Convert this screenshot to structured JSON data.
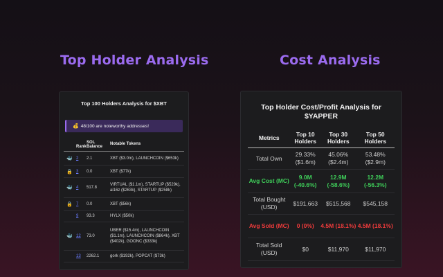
{
  "headings": {
    "left": "Top Holder Analysis",
    "right": "Cost Analysis"
  },
  "holders_card": {
    "title": "Top 100 Holders Analysis for $XBT",
    "notice_icon": "money-bag-icon",
    "notice": "48/100 are noteworthy addresses!",
    "columns": {
      "rank": "Rank",
      "balance": "SOL Balance",
      "tokens": "Notable Tokens"
    },
    "rows": [
      {
        "icon": "whale-icon",
        "rank": "2",
        "balance": "2.1",
        "tokens": "XBT ($3.0m), LAUNCHCOIN ($653k)"
      },
      {
        "icon": "lock-icon",
        "rank": "3",
        "balance": "0.0",
        "tokens": "XBT ($77k)"
      },
      {
        "icon": "whale-icon",
        "rank": "4",
        "balance": "517.8",
        "tokens": "VIRTUAL ($1.1m), STARTUP ($529k), ai16z ($263k), STARTUP ($258k)"
      },
      {
        "icon": "lock-icon",
        "rank": "7",
        "balance": "0.0",
        "tokens": "XBT ($56k)"
      },
      {
        "icon": "",
        "rank": "9",
        "balance": "93.3",
        "tokens": "HYLX ($50k)"
      },
      {
        "icon": "whale-icon",
        "rank": "12",
        "balance": "73.0",
        "tokens": "UBER ($15.4m), LAUNCHCOIN ($1.1m), LAUNCHCOIN ($864k), XBT ($402k), GOONC ($333k)"
      },
      {
        "icon": "",
        "rank": "13",
        "balance": "2262.1",
        "tokens": "gork ($192k), POPCAT ($73k)"
      }
    ]
  },
  "cost_card": {
    "title": "Top Holder Cost/Profit Analysis for $YAPPER",
    "columns": [
      "Metrics",
      "Top 10 Holders",
      "Top 30 Holders",
      "Top 50 Holders"
    ],
    "rows": [
      {
        "metric": "Total Own",
        "style": "normal",
        "values": [
          "29.33% ($1.6m)",
          "45.06% ($2.4m)",
          "53.48% ($2.9m)"
        ]
      },
      {
        "metric": "Avg Cost (MC)",
        "style": "green",
        "values": [
          "9.0M (-40.6%)",
          "12.9M (-58.6%)",
          "12.2M (-56.3%)"
        ]
      },
      {
        "metric": "Total Bought (USD)",
        "style": "normal",
        "values": [
          "$191,663",
          "$515,568",
          "$545,158"
        ]
      },
      {
        "metric": "Avg Sold (MC)",
        "style": "red",
        "values": [
          "0 (0%)",
          "4.5M (18.1%)",
          "4.5M (18.1%)"
        ]
      },
      {
        "metric": "Total Sold (USD)",
        "style": "normal",
        "values": [
          "$0",
          "$11,970",
          "$11,970"
        ]
      }
    ]
  },
  "colors": {
    "accent": "#9b6bef",
    "green": "#3fcf5a",
    "red": "#ef3b3b",
    "link": "#6a7cff"
  }
}
